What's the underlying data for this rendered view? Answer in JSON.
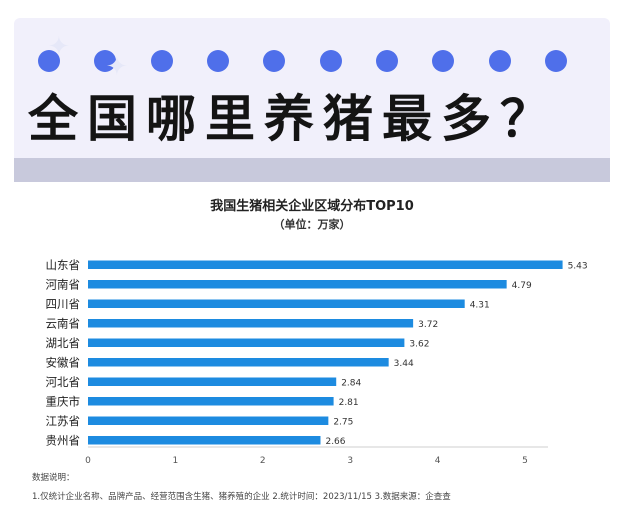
{
  "header": {
    "headline": "全国哪里养猪最多？"
  },
  "chart_data": {
    "type": "bar",
    "orientation": "horizontal",
    "title": "我国生猪相关企业区域分布TOP10",
    "subtitle": "（单位：万家）",
    "categories": [
      "山东省",
      "河南省",
      "四川省",
      "云南省",
      "湖北省",
      "安徽省",
      "河北省",
      "重庆市",
      "江苏省",
      "贵州省"
    ],
    "values": [
      5.43,
      4.79,
      4.31,
      3.72,
      3.62,
      3.44,
      2.84,
      2.81,
      2.75,
      2.66
    ],
    "value_labels": [
      "5.43",
      "4.79",
      "4.31",
      "3.72",
      "3.62",
      "3.44",
      "2.84",
      "2.81",
      "2.75",
      "2.66"
    ],
    "xlim": [
      0,
      5.5
    ],
    "xticks": [
      0,
      1,
      2,
      3,
      4,
      5
    ],
    "xtick_labels": [
      "0",
      "1",
      "2",
      "3",
      "4",
      "5"
    ],
    "grid": false,
    "bar_color": "#1d8be0"
  },
  "notes": {
    "heading": "数据说明：",
    "line1": "1.仅统计企业名称、品牌产品、经营范围含生猪、猪养殖的企业   2.统计时间：2023/11/15   3.数据来源：企查查"
  },
  "colors": {
    "dot": "#4f6fea",
    "card": "#f1f0fb",
    "divider": "#c8c9dc"
  }
}
